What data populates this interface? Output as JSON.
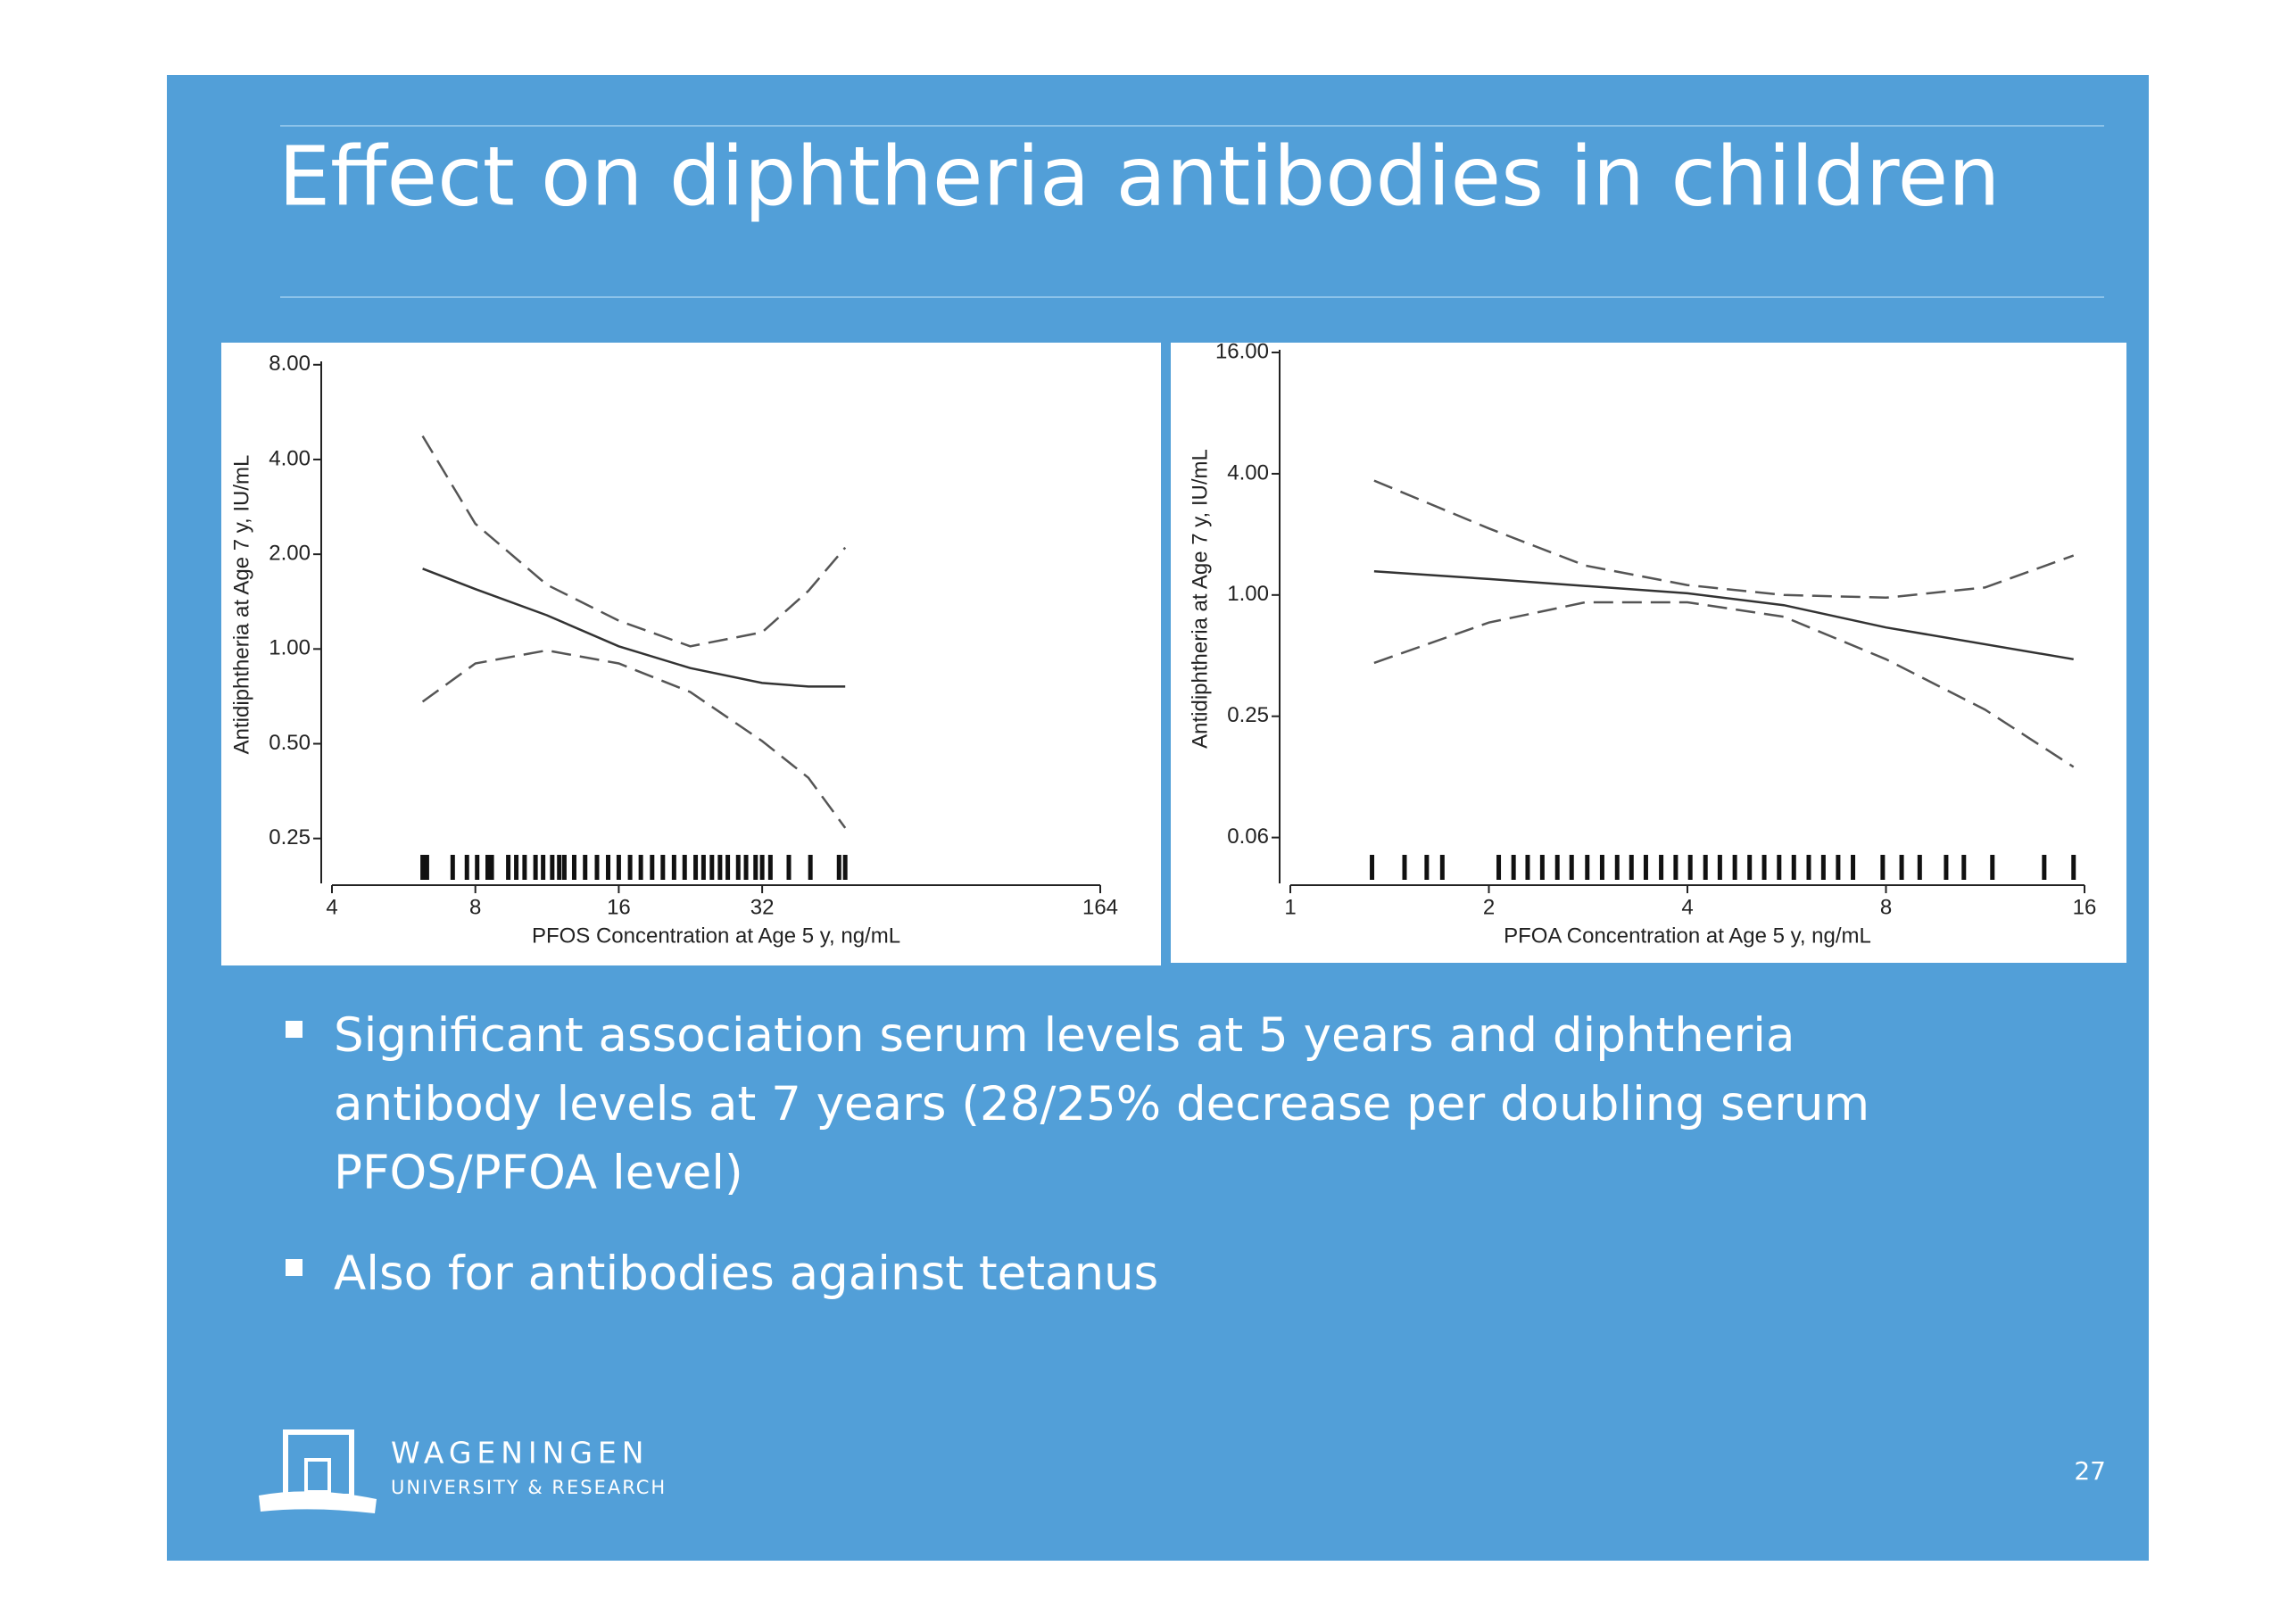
{
  "slide": {
    "title": "Effect on diphtheria antibodies in children",
    "bullets": [
      "Significant association serum levels at 5 years and diphtheria antibody levels at 7 years (28/25% decrease per doubling serum PFOS/PFOA level)",
      "Also for antibodies against tetanus"
    ],
    "logo": {
      "name": "WAGENINGEN",
      "sub": "UNIVERSITY & RESEARCH"
    },
    "page_number": "27"
  },
  "chart_data": [
    {
      "type": "line",
      "xscale": "log",
      "yscale": "log",
      "xlabel": "PFOS Concentration at Age 5 y, ng/mL",
      "ylabel": "Antidiphtheria at Age 7 y, IU/mL",
      "xlim": [
        4,
        164
      ],
      "ylim": [
        0.18,
        8.2
      ],
      "xticks": [
        4,
        8,
        16,
        32,
        164
      ],
      "yticks": [
        {
          "value": 8,
          "label": "8.00"
        },
        {
          "value": 4,
          "label": "4.00"
        },
        {
          "value": 2,
          "label": "2.00"
        },
        {
          "value": 1,
          "label": "1.00"
        },
        {
          "value": 0.5,
          "label": "0.50"
        },
        {
          "value": 0.25,
          "label": "0.25"
        }
      ],
      "series": [
        {
          "style": "solid",
          "color": "#333333",
          "x": [
            6.2,
            8,
            11.3,
            16,
            22.6,
            32,
            40,
            47.8
          ],
          "values": [
            1.8,
            1.55,
            1.28,
            1.02,
            0.87,
            0.78,
            0.76,
            0.76
          ]
        },
        {
          "style": "dashed",
          "color": "#555555",
          "x": [
            6.2,
            8,
            11.3,
            16,
            22.6,
            32,
            40,
            47.8
          ],
          "values": [
            4.75,
            2.5,
            1.6,
            1.23,
            1.02,
            1.13,
            1.53,
            2.1
          ]
        },
        {
          "style": "dashed",
          "color": "#555555",
          "x": [
            6.2,
            8,
            11.3,
            16,
            22.6,
            32,
            40,
            47.8
          ],
          "values": [
            0.68,
            0.9,
            0.99,
            0.9,
            0.73,
            0.51,
            0.39,
            0.27
          ]
        }
      ],
      "rug": [
        6.2,
        6.33,
        7.17,
        7.68,
        8.07,
        8.49,
        8.66,
        9.38,
        9.75,
        10.15,
        10.7,
        11.1,
        11.6,
        12.0,
        12.3,
        12.9,
        13.6,
        14.4,
        15.2,
        16,
        16.9,
        17.8,
        18.8,
        19.8,
        20.9,
        22.0,
        23.2,
        24.1,
        25.1,
        26.1,
        27.1,
        28.5,
        29.6,
        31.0,
        32,
        33.3,
        36.4,
        40.4,
        46.4,
        47.8
      ]
    },
    {
      "type": "line",
      "xscale": "log",
      "yscale": "log",
      "xlabel": "PFOA Concentration at Age 5 y, ng/mL",
      "ylabel": "Antidiphtheria at Age 7 y, IU/mL",
      "xlim": [
        1,
        16
      ],
      "ylim": [
        0.037,
        16.5
      ],
      "xticks": [
        1,
        2,
        4,
        8,
        16
      ],
      "yticks": [
        {
          "value": 16,
          "label": "16.00"
        },
        {
          "value": 4,
          "label": "4.00"
        },
        {
          "value": 1,
          "label": "1.00"
        },
        {
          "value": 0.25,
          "label": "0.25"
        },
        {
          "value": 0.0625,
          "label": "0.06"
        }
      ],
      "series": [
        {
          "style": "solid",
          "color": "#333333",
          "x": [
            1.34,
            2,
            4,
            5.6,
            8,
            15.4
          ],
          "values": [
            1.31,
            1.2,
            1.02,
            0.89,
            0.69,
            0.48
          ]
        },
        {
          "style": "dashed",
          "color": "#555555",
          "x": [
            1.34,
            2,
            2.8,
            4,
            5.6,
            8,
            11.3,
            15.4
          ],
          "values": [
            3.7,
            2.14,
            1.4,
            1.12,
            1.0,
            0.97,
            1.09,
            1.57
          ]
        },
        {
          "style": "dashed",
          "color": "#555555",
          "x": [
            1.34,
            2,
            2.8,
            4,
            5.6,
            8,
            11.3,
            15.4
          ],
          "values": [
            0.46,
            0.73,
            0.92,
            0.92,
            0.78,
            0.48,
            0.27,
            0.14
          ]
        }
      ],
      "rug": [
        1.33,
        1.49,
        1.61,
        1.7,
        2.07,
        2.18,
        2.29,
        2.41,
        2.54,
        2.67,
        2.82,
        2.97,
        3.13,
        3.29,
        3.46,
        3.65,
        3.84,
        4.04,
        4.26,
        4.48,
        4.72,
        4.97,
        5.23,
        5.51,
        5.8,
        6.11,
        6.43,
        6.77,
        7.13,
        7.91,
        8.45,
        9.0,
        9.87,
        10.5,
        11.6,
        13.9,
        15.4
      ]
    }
  ]
}
